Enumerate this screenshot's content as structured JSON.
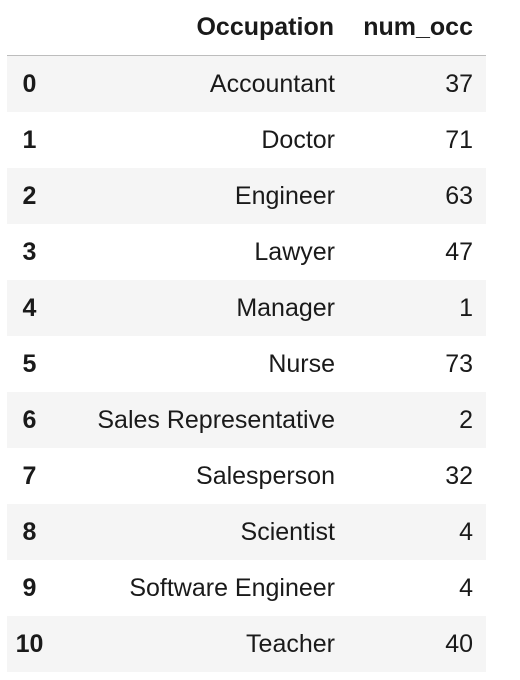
{
  "table": {
    "columns": [
      "",
      "Occupation",
      "num_occ"
    ],
    "rows": [
      {
        "index": "0",
        "occupation": "Accountant",
        "num_occ": "37"
      },
      {
        "index": "1",
        "occupation": "Doctor",
        "num_occ": "71"
      },
      {
        "index": "2",
        "occupation": "Engineer",
        "num_occ": "63"
      },
      {
        "index": "3",
        "occupation": "Lawyer",
        "num_occ": "47"
      },
      {
        "index": "4",
        "occupation": "Manager",
        "num_occ": "1"
      },
      {
        "index": "5",
        "occupation": "Nurse",
        "num_occ": "73"
      },
      {
        "index": "6",
        "occupation": "Sales Representative",
        "num_occ": "2"
      },
      {
        "index": "7",
        "occupation": "Salesperson",
        "num_occ": "32"
      },
      {
        "index": "8",
        "occupation": "Scientist",
        "num_occ": "4"
      },
      {
        "index": "9",
        "occupation": "Software Engineer",
        "num_occ": "4"
      },
      {
        "index": "10",
        "occupation": "Teacher",
        "num_occ": "40"
      }
    ]
  }
}
